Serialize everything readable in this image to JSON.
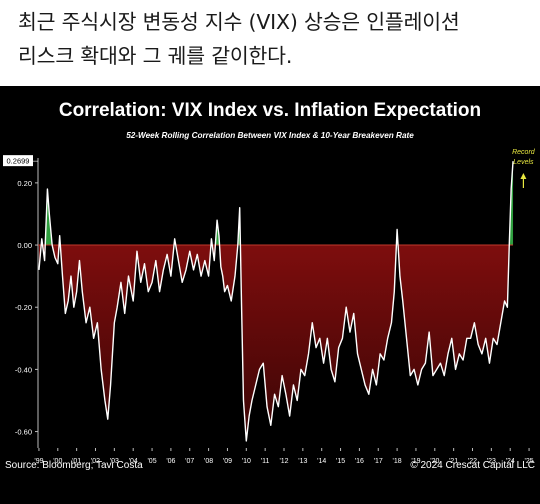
{
  "caption": {
    "line1": "최근 주식시장 변동성 지수 (VIX) 상승은 인플레이션",
    "line2": "리스크 확대와 그 궤를 같이한다."
  },
  "chart_data": {
    "type": "area",
    "title": "Correlation: VIX Index vs. Inflation Expectation",
    "subtitle": "52-Week Rolling Correlation Between VIX Index & 10-Year Breakeven Rate",
    "xlabel": "",
    "ylabel": "",
    "ylim": [
      -0.64,
      0.28
    ],
    "yticks": [
      "0.20",
      "0.00",
      "-0.20",
      "-0.40",
      "-0.60"
    ],
    "ytick_values": [
      0.2,
      0.0,
      -0.2,
      -0.4,
      -0.6
    ],
    "xticks": [
      "'99",
      "'00",
      "'01",
      "'02",
      "'03",
      "'04",
      "'05",
      "'06",
      "'07",
      "'08",
      "'09",
      "'10",
      "'11",
      "'12",
      "'13",
      "'14",
      "'15",
      "'16",
      "'17",
      "'18",
      "'19",
      "'20",
      "'21",
      "'22",
      "'23",
      "'24",
      "'25"
    ],
    "xtick_values": [
      1999,
      2000,
      2001,
      2002,
      2003,
      2004,
      2005,
      2006,
      2007,
      2008,
      2009,
      2010,
      2011,
      2012,
      2013,
      2014,
      2015,
      2016,
      2017,
      2018,
      2019,
      2020,
      2021,
      2022,
      2023,
      2024,
      2025
    ],
    "x_range": [
      1999,
      2025
    ],
    "last_value_label": "0.2699",
    "annotation": "Record Levels",
    "colors": {
      "positive": "#2e9e3e",
      "negative": "#8b0d0d",
      "line": "#ffffff",
      "arrow": "#e8e840"
    },
    "series": [
      {
        "x": [
          1999.0,
          1999.15,
          1999.3,
          1999.45,
          1999.55,
          1999.7,
          1999.85,
          2000.0,
          2000.1,
          2000.25,
          2000.4,
          2000.55,
          2000.7,
          2000.85,
          2001.0,
          2001.15,
          2001.3,
          2001.5,
          2001.7,
          2001.9,
          2002.1,
          2002.3,
          2002.5,
          2002.65,
          2002.8,
          2002.9,
          2003.0,
          2003.15,
          2003.35,
          2003.55,
          2003.75,
          2004.0,
          2004.2,
          2004.4,
          2004.6,
          2004.8,
          2005.0,
          2005.2,
          2005.4,
          2005.6,
          2005.8,
          2006.0,
          2006.2,
          2006.4,
          2006.6,
          2006.8,
          2007.0,
          2007.2,
          2007.4,
          2007.6,
          2007.8,
          2008.0,
          2008.15,
          2008.3,
          2008.45,
          2008.55,
          2008.65,
          2008.75,
          2008.85,
          2009.0,
          2009.2,
          2009.4,
          2009.55,
          2009.65,
          2009.75,
          2009.85,
          2010.0,
          2010.15,
          2010.3,
          2010.5,
          2010.7,
          2010.9,
          2011.1,
          2011.3,
          2011.5,
          2011.7,
          2011.9,
          2012.1,
          2012.3,
          2012.5,
          2012.7,
          2012.9,
          2013.1,
          2013.3,
          2013.5,
          2013.7,
          2013.9,
          2014.1,
          2014.3,
          2014.5,
          2014.7,
          2014.9,
          2015.1,
          2015.3,
          2015.5,
          2015.7,
          2015.9,
          2016.1,
          2016.3,
          2016.5,
          2016.7,
          2016.9,
          2017.1,
          2017.3,
          2017.5,
          2017.7,
          2017.85,
          2018.0,
          2018.15,
          2018.3,
          2018.5,
          2018.7,
          2018.9,
          2019.1,
          2019.3,
          2019.5,
          2019.7,
          2019.9,
          2020.1,
          2020.3,
          2020.5,
          2020.7,
          2020.9,
          2021.1,
          2021.3,
          2021.5,
          2021.7,
          2021.9,
          2022.1,
          2022.3,
          2022.5,
          2022.7,
          2022.9,
          2023.1,
          2023.3,
          2023.5,
          2023.7,
          2023.85,
          2023.95,
          2024.05,
          2024.15
        ],
        "y": [
          -0.08,
          0.02,
          -0.05,
          0.18,
          0.1,
          0.0,
          -0.04,
          -0.06,
          0.03,
          -0.1,
          -0.22,
          -0.18,
          -0.1,
          -0.2,
          -0.15,
          -0.05,
          -0.15,
          -0.25,
          -0.2,
          -0.3,
          -0.25,
          -0.4,
          -0.5,
          -0.56,
          -0.45,
          -0.35,
          -0.25,
          -0.2,
          -0.12,
          -0.22,
          -0.1,
          -0.18,
          -0.02,
          -0.12,
          -0.06,
          -0.15,
          -0.12,
          -0.05,
          -0.15,
          -0.08,
          -0.03,
          -0.1,
          0.02,
          -0.05,
          -0.12,
          -0.08,
          -0.02,
          -0.08,
          -0.03,
          -0.1,
          -0.05,
          -0.1,
          0.02,
          -0.05,
          0.08,
          0.03,
          -0.07,
          -0.1,
          -0.15,
          -0.13,
          -0.18,
          -0.1,
          0.0,
          0.12,
          -0.2,
          -0.5,
          -0.63,
          -0.55,
          -0.5,
          -0.45,
          -0.4,
          -0.38,
          -0.52,
          -0.58,
          -0.48,
          -0.52,
          -0.42,
          -0.48,
          -0.55,
          -0.45,
          -0.5,
          -0.4,
          -0.42,
          -0.35,
          -0.25,
          -0.33,
          -0.3,
          -0.38,
          -0.3,
          -0.4,
          -0.44,
          -0.33,
          -0.3,
          -0.2,
          -0.28,
          -0.22,
          -0.35,
          -0.4,
          -0.45,
          -0.48,
          -0.4,
          -0.45,
          -0.35,
          -0.37,
          -0.3,
          -0.25,
          -0.15,
          0.05,
          -0.1,
          -0.18,
          -0.3,
          -0.42,
          -0.4,
          -0.45,
          -0.4,
          -0.38,
          -0.28,
          -0.42,
          -0.4,
          -0.38,
          -0.42,
          -0.35,
          -0.3,
          -0.4,
          -0.35,
          -0.37,
          -0.3,
          -0.3,
          -0.25,
          -0.32,
          -0.35,
          -0.3,
          -0.38,
          -0.3,
          -0.32,
          -0.25,
          -0.18,
          -0.2,
          0.0,
          0.18,
          0.2699
        ]
      }
    ]
  },
  "footer": {
    "source": "Source: Bloomberg; Tavi Costa",
    "copyright": "© 2024 Crescat Capital LLC"
  }
}
